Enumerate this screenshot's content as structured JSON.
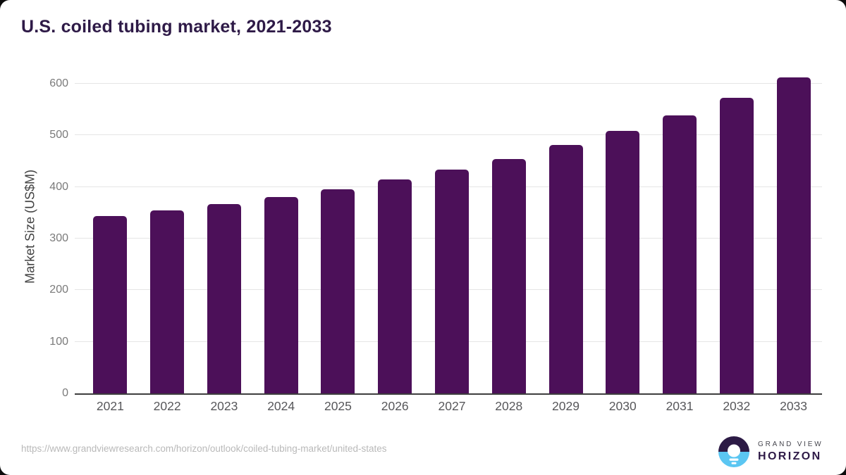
{
  "header": {
    "title": "U.S. coiled tubing market, 2021-2033"
  },
  "footer": {
    "source_url": "https://www.grandviewresearch.com/horizon/outlook/coiled-tubing-market/united-states",
    "logo": {
      "icon": "horizon-sun-icon",
      "brand_top": "GRAND VIEW",
      "brand_bottom": "HORIZON"
    }
  },
  "colors": {
    "bar": "#4c1059",
    "title": "#2e1a47",
    "gridline": "#e5e5e5",
    "baseline": "#3e3e3e",
    "y_tick_label": "#7a7a7a",
    "x_tick_label": "#57575a",
    "source_url": "#b9b9b9",
    "logo_purple": "#2c1a45",
    "logo_blue": "#5bc6f2"
  },
  "chart_data": {
    "type": "bar",
    "title": "U.S. coiled tubing market, 2021-2033",
    "categories": [
      "2021",
      "2022",
      "2023",
      "2024",
      "2025",
      "2026",
      "2027",
      "2028",
      "2029",
      "2030",
      "2031",
      "2032",
      "2033"
    ],
    "values": [
      343,
      355,
      367,
      380,
      396,
      415,
      433,
      454,
      481,
      508,
      538,
      573,
      612
    ],
    "xlabel": "",
    "ylabel": "Market Size (US$M)",
    "ylim": [
      0,
      645
    ],
    "y_ticks": [
      0,
      100,
      200,
      300,
      400,
      500,
      600
    ],
    "grid": "horizontal",
    "legend": "none",
    "bar_color": "#4c1059"
  }
}
